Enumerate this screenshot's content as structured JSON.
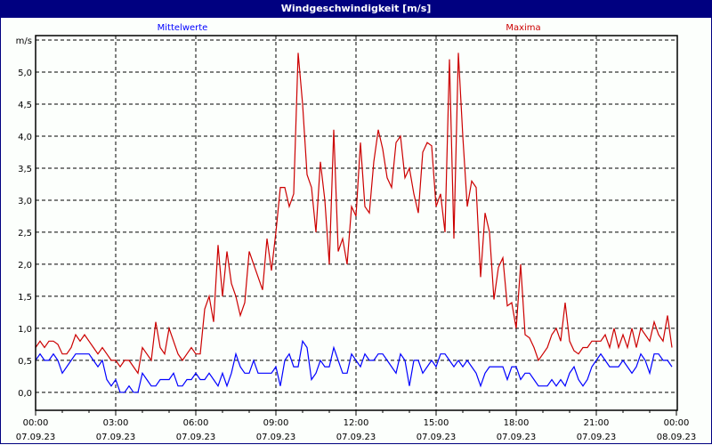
{
  "window": {
    "title": "Windgeschwindigkeit [m/s]"
  },
  "chart_data": {
    "type": "line",
    "title": "Windgeschwindigkeit [m/s]",
    "ylabel": "m/s",
    "ylim": [
      -0.28,
      5.57
    ],
    "yticks": [
      "0,0",
      "0,5",
      "1,0",
      "1,5",
      "2,0",
      "2,5",
      "3,0",
      "3,5",
      "4,0",
      "4,5",
      "5,0"
    ],
    "ytick_values": [
      0,
      0.5,
      1,
      1.5,
      2,
      2.5,
      3,
      3.5,
      4,
      4.5,
      5
    ],
    "xticks": [
      {
        "time": "00:00",
        "date": "07.09.23"
      },
      {
        "time": "03:00",
        "date": "07.09.23"
      },
      {
        "time": "06:00",
        "date": "07.09.23"
      },
      {
        "time": "09:00",
        "date": "07.09.23"
      },
      {
        "time": "12:00",
        "date": "07.09.23"
      },
      {
        "time": "15:00",
        "date": "07.09.23"
      },
      {
        "time": "18:00",
        "date": "07.09.23"
      },
      {
        "time": "21:00",
        "date": "07.09.23"
      },
      {
        "time": "00:00",
        "date": "08.09.23"
      }
    ],
    "grid": true,
    "legend_placement": "top",
    "series": [
      {
        "name": "Mittelwerte",
        "color": "#0000ff",
        "values": [
          0.5,
          0.6,
          0.5,
          0.5,
          0.6,
          0.5,
          0.3,
          0.4,
          0.5,
          0.6,
          0.6,
          0.6,
          0.6,
          0.5,
          0.4,
          0.5,
          0.2,
          0.1,
          0.2,
          0.0,
          0.0,
          0.1,
          0.0,
          0.0,
          0.3,
          0.2,
          0.1,
          0.1,
          0.2,
          0.2,
          0.2,
          0.3,
          0.1,
          0.1,
          0.2,
          0.2,
          0.3,
          0.2,
          0.2,
          0.3,
          0.2,
          0.1,
          0.3,
          0.1,
          0.3,
          0.6,
          0.4,
          0.3,
          0.3,
          0.5,
          0.3,
          0.3,
          0.3,
          0.3,
          0.4,
          0.1,
          0.5,
          0.6,
          0.4,
          0.4,
          0.8,
          0.7,
          0.2,
          0.3,
          0.5,
          0.4,
          0.4,
          0.7,
          0.5,
          0.3,
          0.3,
          0.6,
          0.5,
          0.4,
          0.6,
          0.5,
          0.5,
          0.6,
          0.6,
          0.5,
          0.4,
          0.3,
          0.6,
          0.5,
          0.1,
          0.5,
          0.5,
          0.3,
          0.4,
          0.5,
          0.4,
          0.6,
          0.6,
          0.5,
          0.4,
          0.5,
          0.4,
          0.5,
          0.4,
          0.3,
          0.1,
          0.3,
          0.4,
          0.4,
          0.4,
          0.4,
          0.2,
          0.4,
          0.4,
          0.2,
          0.3,
          0.3,
          0.2,
          0.1,
          0.1,
          0.1,
          0.2,
          0.1,
          0.2,
          0.1,
          0.3,
          0.4,
          0.2,
          0.1,
          0.2,
          0.4,
          0.5,
          0.6,
          0.5,
          0.4,
          0.4,
          0.4,
          0.5,
          0.4,
          0.3,
          0.4,
          0.6,
          0.5,
          0.3,
          0.6,
          0.6,
          0.5,
          0.5,
          0.4
        ]
      },
      {
        "name": "Maxima",
        "color": "#cc0000",
        "values": [
          0.7,
          0.8,
          0.7,
          0.8,
          0.8,
          0.75,
          0.6,
          0.6,
          0.7,
          0.9,
          0.8,
          0.9,
          0.8,
          0.7,
          0.6,
          0.7,
          0.6,
          0.5,
          0.5,
          0.4,
          0.5,
          0.5,
          0.4,
          0.3,
          0.7,
          0.6,
          0.5,
          1.1,
          0.7,
          0.6,
          1.0,
          0.8,
          0.6,
          0.5,
          0.6,
          0.7,
          0.6,
          0.6,
          1.3,
          1.5,
          1.1,
          2.3,
          1.5,
          2.2,
          1.7,
          1.5,
          1.2,
          1.4,
          2.2,
          2.0,
          1.8,
          1.6,
          2.4,
          1.9,
          2.5,
          3.2,
          3.2,
          2.9,
          3.1,
          5.3,
          4.5,
          3.4,
          3.2,
          2.5,
          3.6,
          3.0,
          2.0,
          4.1,
          2.2,
          2.4,
          2.0,
          2.9,
          2.75,
          3.9,
          2.9,
          2.8,
          3.6,
          4.1,
          3.8,
          3.35,
          3.2,
          3.9,
          4.0,
          3.35,
          3.5,
          3.1,
          2.8,
          3.75,
          3.9,
          3.85,
          2.9,
          3.1,
          2.5,
          5.2,
          2.4,
          5.3,
          4.0,
          2.9,
          3.3,
          3.2,
          1.8,
          2.8,
          2.5,
          1.45,
          1.95,
          2.1,
          1.35,
          1.4,
          1.0,
          2.0,
          0.9,
          0.85,
          0.7,
          0.5,
          0.6,
          0.7,
          0.9,
          1.0,
          0.8,
          1.4,
          0.8,
          0.65,
          0.6,
          0.7,
          0.7,
          0.8,
          0.8,
          0.8,
          0.9,
          0.7,
          1.0,
          0.7,
          0.9,
          0.7,
          1.0,
          0.7,
          1.0,
          0.9,
          0.8,
          1.1,
          0.9,
          0.8,
          1.2,
          0.7
        ]
      }
    ]
  }
}
